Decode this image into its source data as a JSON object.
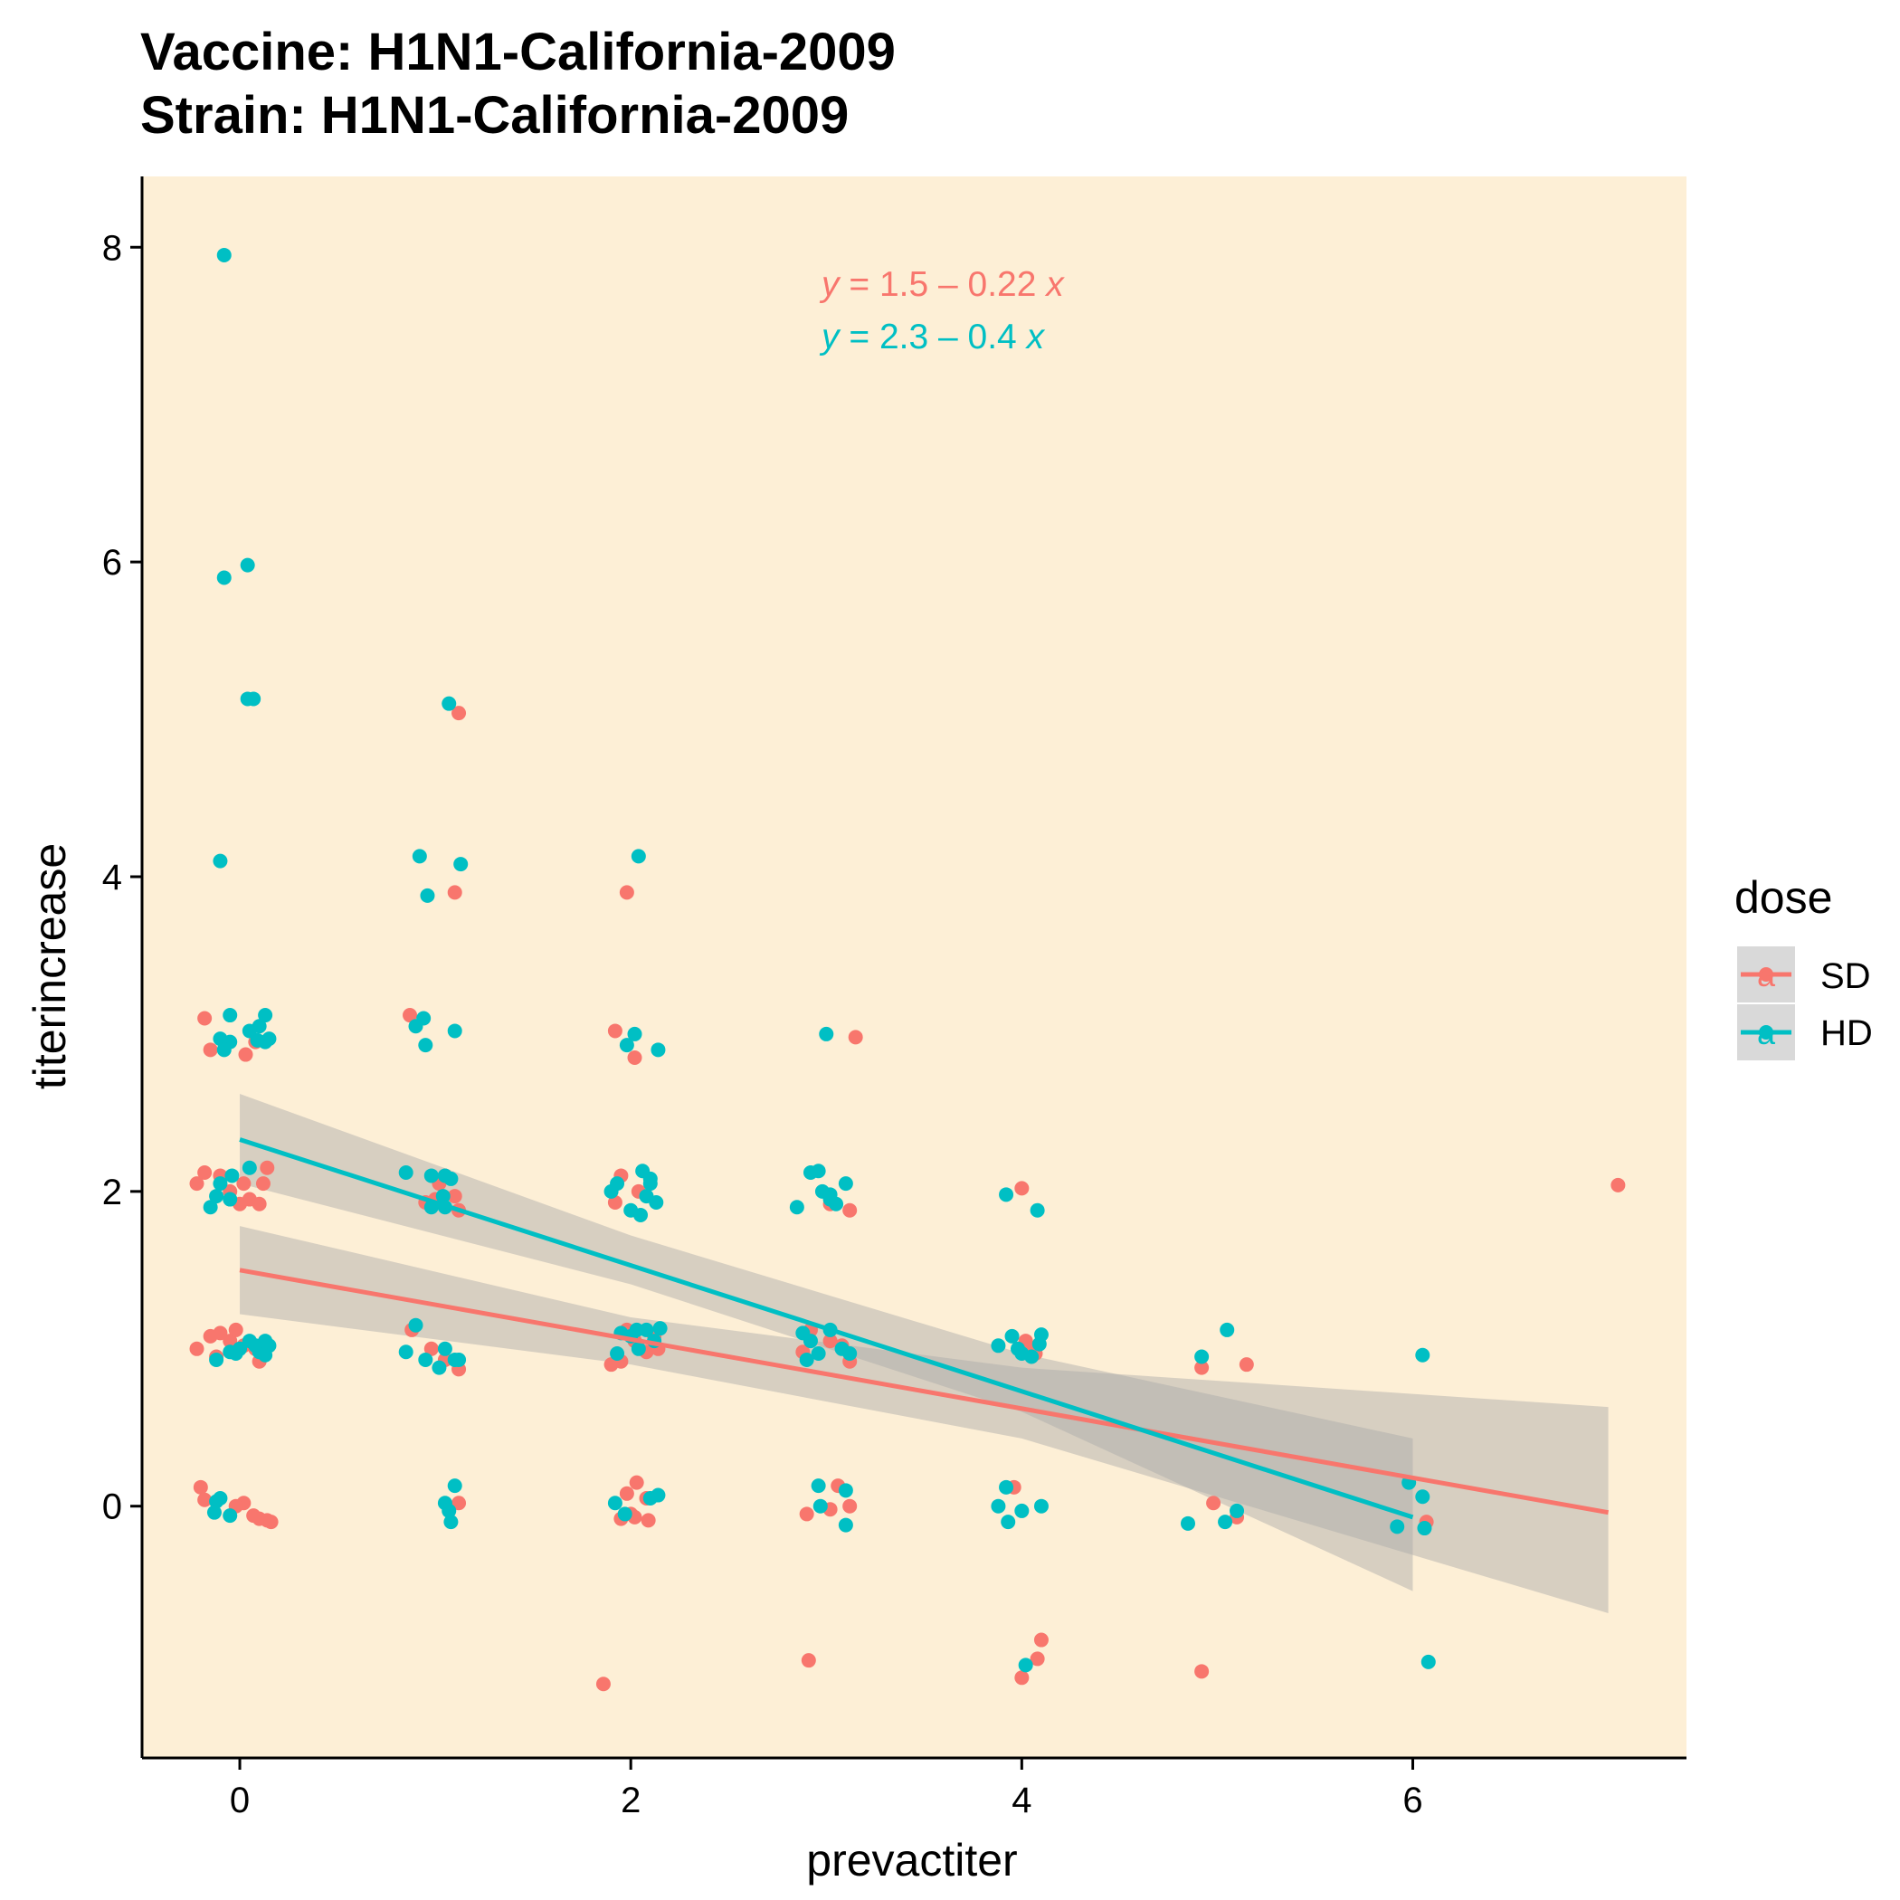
{
  "chart_data": {
    "type": "scatter",
    "title_lines": [
      "Vaccine: H1N1-California-2009",
      "Strain: H1N1-California-2009"
    ],
    "xlabel": "prevactiter",
    "ylabel": "titerincrease",
    "xlim": [
      -0.5,
      7.4
    ],
    "ylim": [
      -1.6,
      8.45
    ],
    "x_ticks": [
      0,
      2,
      4,
      6
    ],
    "y_ticks": [
      0,
      2,
      4,
      6,
      8
    ],
    "panel_background": "#FDEFD6",
    "grid": false,
    "legend": {
      "title": "dose",
      "position": "right",
      "entries": [
        {
          "name": "SD",
          "color": "#F8766D",
          "glyph": "a"
        },
        {
          "name": "HD",
          "color": "#00BFC4",
          "glyph": "a"
        }
      ]
    },
    "equations": [
      {
        "prefix": "y",
        "body": " = 1.5 – 0.22 ",
        "suffix": "x",
        "color": "#F8766D"
      },
      {
        "prefix": "y",
        "body": " = 2.3 – 0.4 ",
        "suffix": "x",
        "color": "#00BFC4"
      }
    ],
    "regression": [
      {
        "series": "SD",
        "color": "#F8766D",
        "intercept": 1.5,
        "slope": -0.22,
        "x_range": [
          0,
          7
        ],
        "ci_x": [
          0,
          2,
          4,
          7
        ],
        "ci_lower": [
          1.22,
          0.9,
          0.43,
          -0.68
        ],
        "ci_upper": [
          1.78,
          1.2,
          0.88,
          0.63
        ]
      },
      {
        "series": "HD",
        "color": "#00BFC4",
        "intercept": 2.33,
        "slope": -0.4,
        "x_range": [
          0,
          6
        ],
        "ci_x": [
          0,
          2,
          4,
          6
        ],
        "ci_lower": [
          2.05,
          1.41,
          0.6,
          -0.54
        ],
        "ci_upper": [
          2.62,
          1.72,
          0.97,
          0.43
        ]
      }
    ],
    "ci_color": "#A8A8A8",
    "series": [
      {
        "name": "SD",
        "color": "#F8766D",
        "points": [
          [
            -0.18,
            3.1
          ],
          [
            -0.15,
            2.9
          ],
          [
            0.03,
            2.87
          ],
          [
            0.08,
            2.95
          ],
          [
            -0.18,
            2.12
          ],
          [
            -0.22,
            2.05
          ],
          [
            -0.1,
            2.1
          ],
          [
            0.02,
            2.05
          ],
          [
            0.05,
            1.95
          ],
          [
            0.1,
            1.92
          ],
          [
            0.12,
            2.05
          ],
          [
            -0.05,
            2.0
          ],
          [
            0.14,
            2.15
          ],
          [
            0.0,
            1.92
          ],
          [
            -0.15,
            1.08
          ],
          [
            -0.1,
            1.1
          ],
          [
            -0.22,
            1.0
          ],
          [
            -0.12,
            0.95
          ],
          [
            -0.05,
            1.05
          ],
          [
            0.02,
            1.02
          ],
          [
            0.1,
            0.92
          ],
          [
            -0.02,
            1.12
          ],
          [
            0.08,
            1.0
          ],
          [
            -0.2,
            0.12
          ],
          [
            -0.18,
            0.04
          ],
          [
            0.02,
            0.02
          ],
          [
            -0.02,
            0.0
          ],
          [
            0.07,
            -0.06
          ],
          [
            0.1,
            -0.08
          ],
          [
            0.14,
            -0.09
          ],
          [
            0.16,
            -0.1
          ],
          [
            1.12,
            5.04
          ],
          [
            1.1,
            3.9
          ],
          [
            0.87,
            3.12
          ],
          [
            1.05,
            2.1
          ],
          [
            1.02,
            2.05
          ],
          [
            1.1,
            1.97
          ],
          [
            1.0,
            1.95
          ],
          [
            1.12,
            1.88
          ],
          [
            0.95,
            1.93
          ],
          [
            0.88,
            1.12
          ],
          [
            0.98,
            1.0
          ],
          [
            1.12,
            0.87
          ],
          [
            1.05,
            0.93
          ],
          [
            1.12,
            0.02
          ],
          [
            1.98,
            3.9
          ],
          [
            1.92,
            3.02
          ],
          [
            2.02,
            2.85
          ],
          [
            1.95,
            2.1
          ],
          [
            1.92,
            1.93
          ],
          [
            2.04,
            2.0
          ],
          [
            1.98,
            1.12
          ],
          [
            2.02,
            1.05
          ],
          [
            2.12,
            1.08
          ],
          [
            2.08,
            0.98
          ],
          [
            1.9,
            0.9
          ],
          [
            1.95,
            0.92
          ],
          [
            2.14,
            1.0
          ],
          [
            2.03,
            0.15
          ],
          [
            1.98,
            0.08
          ],
          [
            2.08,
            0.05
          ],
          [
            2.0,
            -0.05
          ],
          [
            1.95,
            -0.08
          ],
          [
            2.02,
            -0.07
          ],
          [
            2.09,
            -0.09
          ],
          [
            1.86,
            -1.13
          ],
          [
            3.15,
            2.98
          ],
          [
            3.12,
            1.88
          ],
          [
            3.02,
            1.92
          ],
          [
            2.92,
            1.12
          ],
          [
            3.02,
            1.05
          ],
          [
            3.08,
            1.02
          ],
          [
            3.12,
            0.92
          ],
          [
            2.88,
            0.98
          ],
          [
            3.06,
            0.13
          ],
          [
            3.12,
            0.0
          ],
          [
            3.02,
            -0.02
          ],
          [
            2.9,
            -0.05
          ],
          [
            2.91,
            -0.98
          ],
          [
            4.0,
            2.02
          ],
          [
            4.02,
            1.05
          ],
          [
            4.04,
            1.0
          ],
          [
            4.07,
            0.97
          ],
          [
            3.96,
            0.12
          ],
          [
            4.1,
            -0.85
          ],
          [
            4.08,
            -0.97
          ],
          [
            4.0,
            -1.09
          ],
          [
            4.92,
            0.88
          ],
          [
            5.15,
            0.9
          ],
          [
            4.98,
            0.02
          ],
          [
            5.1,
            -0.07
          ],
          [
            4.92,
            -1.05
          ],
          [
            6.07,
            -0.1
          ],
          [
            7.05,
            2.04
          ]
        ]
      },
      {
        "name": "HD",
        "color": "#00BFC4",
        "points": [
          [
            -0.08,
            7.95
          ],
          [
            -0.08,
            5.9
          ],
          [
            0.04,
            5.98
          ],
          [
            0.04,
            5.13
          ],
          [
            0.07,
            5.13
          ],
          [
            -0.1,
            4.1
          ],
          [
            -0.05,
            3.12
          ],
          [
            -0.1,
            2.97
          ],
          [
            -0.05,
            2.95
          ],
          [
            -0.08,
            2.9
          ],
          [
            0.05,
            3.02
          ],
          [
            0.1,
            3.05
          ],
          [
            0.13,
            3.12
          ],
          [
            0.13,
            2.95
          ],
          [
            0.15,
            2.97
          ],
          [
            0.09,
            2.96
          ],
          [
            -0.15,
            1.9
          ],
          [
            -0.1,
            2.05
          ],
          [
            -0.04,
            2.1
          ],
          [
            0.05,
            2.15
          ],
          [
            -0.05,
            1.95
          ],
          [
            -0.12,
            1.97
          ],
          [
            -0.12,
            0.93
          ],
          [
            -0.05,
            0.98
          ],
          [
            0.0,
            1.0
          ],
          [
            0.05,
            1.05
          ],
          [
            0.1,
            0.98
          ],
          [
            0.13,
            0.96
          ],
          [
            0.15,
            1.02
          ],
          [
            -0.02,
            0.97
          ],
          [
            0.08,
            1.02
          ],
          [
            0.13,
            1.05
          ],
          [
            -0.12,
            0.03
          ],
          [
            -0.13,
            -0.04
          ],
          [
            -0.05,
            -0.06
          ],
          [
            -0.1,
            0.05
          ],
          [
            1.07,
            5.1
          ],
          [
            0.92,
            4.13
          ],
          [
            1.13,
            4.08
          ],
          [
            0.96,
            3.88
          ],
          [
            0.9,
            3.05
          ],
          [
            0.94,
            3.1
          ],
          [
            0.95,
            2.93
          ],
          [
            1.1,
            3.02
          ],
          [
            0.85,
            2.12
          ],
          [
            0.98,
            2.1
          ],
          [
            1.08,
            2.08
          ],
          [
            1.04,
            1.97
          ],
          [
            1.05,
            1.9
          ],
          [
            0.98,
            1.9
          ],
          [
            1.05,
            2.1
          ],
          [
            0.9,
            1.15
          ],
          [
            0.85,
            0.98
          ],
          [
            0.95,
            0.93
          ],
          [
            1.02,
            0.88
          ],
          [
            1.1,
            0.93
          ],
          [
            1.05,
            1.0
          ],
          [
            1.12,
            0.93
          ],
          [
            1.1,
            0.13
          ],
          [
            1.05,
            0.02
          ],
          [
            1.07,
            -0.03
          ],
          [
            1.08,
            -0.1
          ],
          [
            2.04,
            4.13
          ],
          [
            1.98,
            2.93
          ],
          [
            2.02,
            3.0
          ],
          [
            2.14,
            2.9
          ],
          [
            2.06,
            2.13
          ],
          [
            2.1,
            2.08
          ],
          [
            2.13,
            1.93
          ],
          [
            1.9,
            2.0
          ],
          [
            1.93,
            2.05
          ],
          [
            2.0,
            1.88
          ],
          [
            2.05,
            1.85
          ],
          [
            2.08,
            1.97
          ],
          [
            2.1,
            2.05
          ],
          [
            1.95,
            1.1
          ],
          [
            2.0,
            1.08
          ],
          [
            2.08,
            1.12
          ],
          [
            2.12,
            1.05
          ],
          [
            2.04,
            1.0
          ],
          [
            1.93,
            0.97
          ],
          [
            2.03,
            1.12
          ],
          [
            2.15,
            1.13
          ],
          [
            1.92,
            0.02
          ],
          [
            2.1,
            0.05
          ],
          [
            2.14,
            0.07
          ],
          [
            1.97,
            -0.05
          ],
          [
            3.0,
            3.0
          ],
          [
            2.85,
            1.9
          ],
          [
            2.92,
            2.12
          ],
          [
            2.96,
            2.13
          ],
          [
            2.98,
            2.0
          ],
          [
            3.02,
            1.95
          ],
          [
            3.1,
            2.05
          ],
          [
            3.05,
            1.92
          ],
          [
            3.02,
            1.98
          ],
          [
            2.88,
            1.1
          ],
          [
            2.92,
            1.05
          ],
          [
            3.02,
            1.12
          ],
          [
            3.08,
            1.0
          ],
          [
            3.12,
            0.97
          ],
          [
            2.9,
            0.93
          ],
          [
            2.96,
            0.97
          ],
          [
            2.96,
            0.13
          ],
          [
            2.97,
            0.0
          ],
          [
            3.1,
            0.1
          ],
          [
            3.1,
            -0.12
          ],
          [
            3.92,
            1.98
          ],
          [
            4.08,
            1.88
          ],
          [
            3.95,
            1.08
          ],
          [
            3.88,
            1.02
          ],
          [
            4.0,
            0.97
          ],
          [
            4.05,
            0.95
          ],
          [
            4.09,
            1.03
          ],
          [
            4.1,
            1.09
          ],
          [
            3.98,
            1.0
          ],
          [
            3.92,
            0.12
          ],
          [
            3.88,
            0.0
          ],
          [
            4.0,
            -0.03
          ],
          [
            4.1,
            0.0
          ],
          [
            3.93,
            -0.1
          ],
          [
            4.02,
            -1.01
          ],
          [
            5.05,
            1.12
          ],
          [
            4.92,
            0.95
          ],
          [
            4.85,
            -0.11
          ],
          [
            5.04,
            -0.1
          ],
          [
            5.1,
            -0.03
          ],
          [
            6.05,
            0.96
          ],
          [
            5.98,
            0.15
          ],
          [
            6.05,
            0.06
          ],
          [
            5.92,
            -0.13
          ],
          [
            6.06,
            -0.14
          ],
          [
            6.08,
            -0.99
          ]
        ]
      }
    ]
  }
}
